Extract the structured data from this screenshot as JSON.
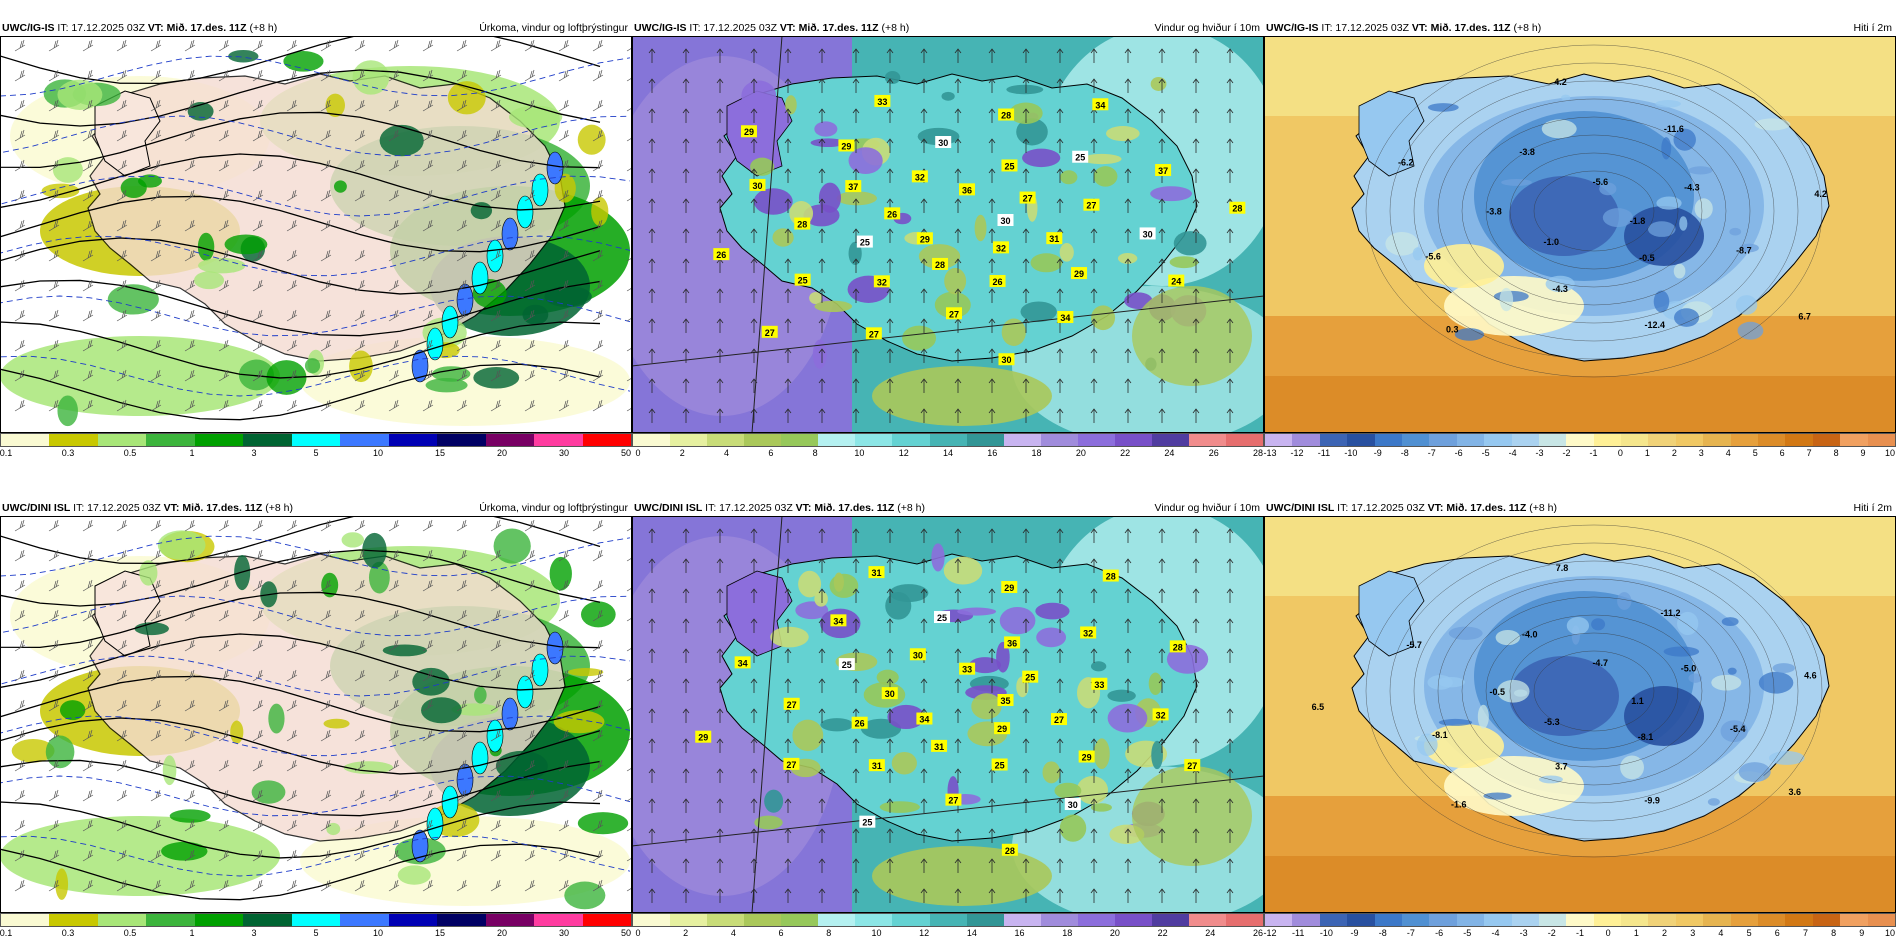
{
  "panels": [
    {
      "id": "p1",
      "kind": "precip",
      "model": "UWC/IG-IS",
      "it": "IT: 17.12.2025 03Z",
      "vt_label": "VT:",
      "vt": "Mið. 17.des. 11Z",
      "lead": "(+8 h)",
      "field": "Úrkoma, vindur og loftþrýstingur",
      "colorbar": {
        "colors": [
          "#fafad2",
          "#c8c800",
          "#a8e678",
          "#3cb43c",
          "#00a000",
          "#006432",
          "#00ffff",
          "#3c78ff",
          "#0000b4",
          "#000064",
          "#780064",
          "#ff3ca0",
          "#ff0000"
        ],
        "ticks": [
          "0.1",
          "0.3",
          "0.5",
          "1",
          "3",
          "5",
          "10",
          "15",
          "20",
          "30",
          "50"
        ]
      },
      "labels": []
    },
    {
      "id": "p2",
      "kind": "wind",
      "model": "UWC/IG-IS",
      "it": "IT: 17.12.2025 03Z",
      "vt_label": "VT:",
      "vt": "Mið. 17.des. 11Z",
      "lead": "(+8 h)",
      "field": "Vindur og hviður í 10m",
      "colorbar": {
        "colors": [
          "#fafad2",
          "#e6f0a0",
          "#c8dc78",
          "#aac85a",
          "#96c85a",
          "#b4f0f0",
          "#8ce6e6",
          "#64d2d2",
          "#46b4b4",
          "#329696",
          "#c8b4f0",
          "#a08cdc",
          "#8c6edc",
          "#7850c8",
          "#503ca0",
          "#f08c8c",
          "#e66e6e"
        ],
        "ticks": [
          "0",
          "2",
          "4",
          "6",
          "8",
          "10",
          "12",
          "14",
          "16",
          "18",
          "20",
          "22",
          "24",
          "26",
          "28"
        ]
      },
      "labels": [
        "30",
        "29",
        "36",
        "32",
        "26",
        "27",
        "28",
        "32",
        "31",
        "25",
        "25",
        "26",
        "37",
        "27",
        "32",
        "30",
        "29",
        "28",
        "25",
        "27",
        "29",
        "30",
        "25",
        "28",
        "34",
        "30",
        "37",
        "27",
        "33",
        "24",
        "26",
        "34",
        "30",
        "29",
        "28",
        "27"
      ]
    },
    {
      "id": "p3",
      "kind": "temp",
      "model": "UWC/IG-IS",
      "it": "IT: 17.12.2025 03Z",
      "vt_label": "VT:",
      "vt": "Mið. 17.des. 11Z",
      "lead": "(+8 h)",
      "field": "Hiti í 2m",
      "colorbar": {
        "colors": [
          "#c8b4f0",
          "#a08cdc",
          "#3c64b4",
          "#2850a0",
          "#3c78c8",
          "#5090d2",
          "#6ea0dc",
          "#82b4e6",
          "#96c8f0",
          "#aad2f0",
          "#c8e6e6",
          "#fffac8",
          "#fff096",
          "#f5e68c",
          "#f0d278",
          "#f0c864",
          "#e6b450",
          "#e6a03c",
          "#dc8c28",
          "#d27814",
          "#c86414",
          "#f0a060",
          "#e89050"
        ],
        "ticks": [
          "-13",
          "-12",
          "-11",
          "-10",
          "-9",
          "-8",
          "-7",
          "-6",
          "-5",
          "-4",
          "-3",
          "-2",
          "-1",
          "0",
          "1",
          "2",
          "3",
          "4",
          "5",
          "6",
          "7",
          "8",
          "9",
          "10"
        ]
      },
      "labels": [
        "-1.8",
        "-1.0",
        "-5.6",
        "-0.5",
        "-3.8",
        "-4.3",
        "-4.3",
        "-3.8",
        "-8.7",
        "-5.6",
        "-11.6",
        "-12.4",
        "-6.2",
        "4.2",
        "0.3",
        "4.2",
        "6.7"
      ]
    },
    {
      "id": "p4",
      "kind": "precip",
      "model": "UWC/DINI ISL",
      "it": "IT: 17.12.2025 03Z",
      "vt_label": "VT:",
      "vt": "Mið. 17.des. 11Z",
      "lead": "(+8 h)",
      "field": "Úrkoma, vindur og loftþrýstingur",
      "colorbar": {
        "colors": [
          "#fafad2",
          "#c8c800",
          "#a8e678",
          "#3cb43c",
          "#00a000",
          "#006432",
          "#00ffff",
          "#3c78ff",
          "#0000b4",
          "#000064",
          "#780064",
          "#ff3ca0",
          "#ff0000"
        ],
        "ticks": [
          "0.1",
          "0.3",
          "0.5",
          "1",
          "3",
          "5",
          "10",
          "15",
          "20",
          "30",
          "50"
        ]
      },
      "labels": []
    },
    {
      "id": "p5",
      "kind": "wind",
      "model": "UWC/DINI ISL",
      "it": "IT: 17.12.2025 03Z",
      "vt_label": "VT:",
      "vt": "Mið. 17.des. 11Z",
      "lead": "(+8 h)",
      "field": "Vindur og hviður í 10m",
      "colorbar": {
        "colors": [
          "#fafad2",
          "#e6f0a0",
          "#c8dc78",
          "#aac85a",
          "#96c85a",
          "#b4f0f0",
          "#8ce6e6",
          "#64d2d2",
          "#46b4b4",
          "#329696",
          "#c8b4f0",
          "#a08cdc",
          "#8c6edc",
          "#7850c8",
          "#503ca0",
          "#f08c8c",
          "#e66e6e"
        ],
        "ticks": [
          "0",
          "2",
          "4",
          "6",
          "8",
          "10",
          "12",
          "14",
          "16",
          "18",
          "20",
          "22",
          "24",
          "26"
        ]
      },
      "labels": [
        "35",
        "34",
        "33",
        "29",
        "30",
        "25",
        "31",
        "30",
        "27",
        "26",
        "36",
        "25",
        "25",
        "33",
        "31",
        "25",
        "29",
        "27",
        "32",
        "27",
        "34",
        "32",
        "27",
        "29",
        "30",
        "34",
        "28",
        "25",
        "31",
        "27",
        "29",
        "28",
        "28"
      ]
    },
    {
      "id": "p6",
      "kind": "temp",
      "model": "UWC/DINI ISL",
      "it": "IT: 17.12.2025 03Z",
      "vt_label": "VT:",
      "vt": "Mið. 17.des. 11Z",
      "lead": "(+8 h)",
      "field": "Hiti í 2m",
      "colorbar": {
        "colors": [
          "#c8b4f0",
          "#a08cdc",
          "#3c64b4",
          "#2850a0",
          "#3c78c8",
          "#5090d2",
          "#6ea0dc",
          "#82b4e6",
          "#96c8f0",
          "#aad2f0",
          "#c8e6e6",
          "#fffac8",
          "#fff096",
          "#f5e68c",
          "#f0d278",
          "#f0c864",
          "#e6b450",
          "#e6a03c",
          "#dc8c28",
          "#d27814",
          "#c86414",
          "#f0a060",
          "#e89050"
        ],
        "ticks": [
          "-12",
          "-11",
          "-10",
          "-9",
          "-8",
          "-7",
          "-6",
          "-5",
          "-4",
          "-3",
          "-2",
          "-1",
          "0",
          "1",
          "2",
          "3",
          "4",
          "5",
          "6",
          "7",
          "8",
          "9",
          "10"
        ]
      },
      "labels": [
        "1.1",
        "-5.3",
        "-4.7",
        "-8.1",
        "-0.5",
        "-5.0",
        "3.7",
        "-4.0",
        "-5.4",
        "-8.1",
        "-11.2",
        "-9.9",
        "-5.7",
        "4.6",
        "-1.6",
        "7.8",
        "3.6",
        "6.5"
      ]
    }
  ]
}
